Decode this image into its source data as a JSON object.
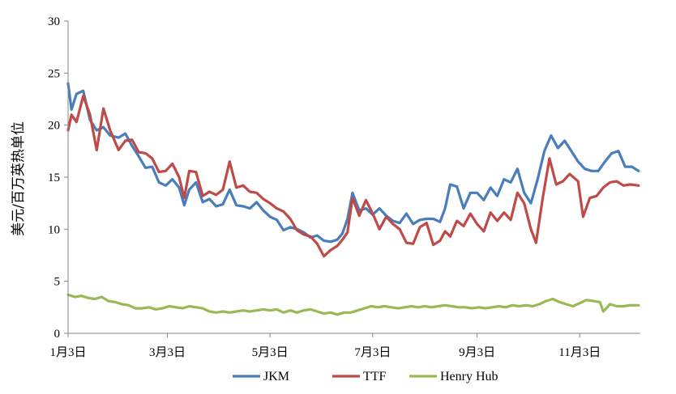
{
  "chart_data": {
    "type": "line",
    "title": "",
    "xlabel": "",
    "ylabel": "美元/百万英热单位",
    "ylim": [
      0,
      30
    ],
    "y_ticks": [
      0,
      5,
      10,
      15,
      20,
      25,
      30
    ],
    "x_ticks": [
      {
        "label": "1月3日",
        "date": "2022-01-03"
      },
      {
        "label": "3月3日",
        "date": "2022-03-03"
      },
      {
        "label": "5月3日",
        "date": "2022-05-03"
      },
      {
        "label": "7月3日",
        "date": "2022-07-03"
      },
      {
        "label": "9月3日",
        "date": "2022-09-03"
      },
      {
        "label": "11月3日",
        "date": "2022-11-03"
      }
    ],
    "x_range": [
      "2022-01-03",
      "2022-12-09"
    ],
    "grid": false,
    "legend": "bottom",
    "series": [
      {
        "name": "JKM",
        "color": "#4a7ebb",
        "points": [
          [
            "2022-01-03",
            24.0
          ],
          [
            "2022-01-05",
            21.5
          ],
          [
            "2022-01-08",
            23.0
          ],
          [
            "2022-01-12",
            23.3
          ],
          [
            "2022-01-16",
            20.5
          ],
          [
            "2022-01-20",
            19.5
          ],
          [
            "2022-01-24",
            19.8
          ],
          [
            "2022-01-28",
            19.0
          ],
          [
            "2022-02-02",
            18.8
          ],
          [
            "2022-02-06",
            19.2
          ],
          [
            "2022-02-10",
            18.0
          ],
          [
            "2022-02-14",
            17.0
          ],
          [
            "2022-02-18",
            15.9
          ],
          [
            "2022-02-22",
            16.0
          ],
          [
            "2022-02-26",
            14.5
          ],
          [
            "2022-03-02",
            14.2
          ],
          [
            "2022-03-06",
            14.8
          ],
          [
            "2022-03-10",
            14.0
          ],
          [
            "2022-03-13",
            12.3
          ],
          [
            "2022-03-16",
            13.8
          ],
          [
            "2022-03-20",
            14.5
          ],
          [
            "2022-03-24",
            12.6
          ],
          [
            "2022-03-28",
            12.9
          ],
          [
            "2022-04-01",
            12.2
          ],
          [
            "2022-04-05",
            12.4
          ],
          [
            "2022-04-09",
            13.8
          ],
          [
            "2022-04-13",
            12.3
          ],
          [
            "2022-04-17",
            12.2
          ],
          [
            "2022-04-21",
            12.0
          ],
          [
            "2022-04-25",
            12.6
          ],
          [
            "2022-04-29",
            11.8
          ],
          [
            "2022-05-03",
            11.2
          ],
          [
            "2022-05-07",
            10.9
          ],
          [
            "2022-05-11",
            9.9
          ],
          [
            "2022-05-15",
            10.2
          ],
          [
            "2022-05-19",
            10.0
          ],
          [
            "2022-05-23",
            9.7
          ],
          [
            "2022-05-27",
            9.2
          ],
          [
            "2022-05-31",
            9.4
          ],
          [
            "2022-06-04",
            8.9
          ],
          [
            "2022-06-08",
            8.8
          ],
          [
            "2022-06-12",
            9.0
          ],
          [
            "2022-06-15",
            9.6
          ],
          [
            "2022-06-18",
            11.0
          ],
          [
            "2022-06-21",
            13.5
          ],
          [
            "2022-06-25",
            11.8
          ],
          [
            "2022-06-29",
            12.0
          ],
          [
            "2022-07-03",
            11.4
          ],
          [
            "2022-07-07",
            12.0
          ],
          [
            "2022-07-11",
            11.3
          ],
          [
            "2022-07-15",
            10.8
          ],
          [
            "2022-07-19",
            10.6
          ],
          [
            "2022-07-23",
            11.5
          ],
          [
            "2022-07-27",
            10.5
          ],
          [
            "2022-07-31",
            10.9
          ],
          [
            "2022-08-04",
            11.0
          ],
          [
            "2022-08-08",
            11.0
          ],
          [
            "2022-08-12",
            10.7
          ],
          [
            "2022-08-15",
            12.0
          ],
          [
            "2022-08-18",
            14.3
          ],
          [
            "2022-08-22",
            14.1
          ],
          [
            "2022-08-26",
            12.0
          ],
          [
            "2022-08-30",
            13.5
          ],
          [
            "2022-09-03",
            13.5
          ],
          [
            "2022-09-07",
            12.8
          ],
          [
            "2022-09-11",
            14.0
          ],
          [
            "2022-09-15",
            13.2
          ],
          [
            "2022-09-19",
            14.8
          ],
          [
            "2022-09-23",
            14.5
          ],
          [
            "2022-09-27",
            15.8
          ],
          [
            "2022-10-01",
            13.5
          ],
          [
            "2022-10-05",
            12.5
          ],
          [
            "2022-10-09",
            14.8
          ],
          [
            "2022-10-13",
            17.5
          ],
          [
            "2022-10-17",
            19.0
          ],
          [
            "2022-10-21",
            17.8
          ],
          [
            "2022-10-25",
            18.5
          ],
          [
            "2022-10-29",
            17.5
          ],
          [
            "2022-11-02",
            16.5
          ],
          [
            "2022-11-06",
            15.8
          ],
          [
            "2022-11-10",
            15.6
          ],
          [
            "2022-11-14",
            15.6
          ],
          [
            "2022-11-18",
            16.5
          ],
          [
            "2022-11-22",
            17.3
          ],
          [
            "2022-11-26",
            17.5
          ],
          [
            "2022-11-30",
            16.0
          ],
          [
            "2022-12-04",
            16.0
          ],
          [
            "2022-12-08",
            15.6
          ]
        ]
      },
      {
        "name": "TTF",
        "color": "#be4b48",
        "points": [
          [
            "2022-01-03",
            19.5
          ],
          [
            "2022-01-05",
            21.0
          ],
          [
            "2022-01-08",
            20.3
          ],
          [
            "2022-01-12",
            22.8
          ],
          [
            "2022-01-16",
            21.0
          ],
          [
            "2022-01-20",
            17.6
          ],
          [
            "2022-01-24",
            21.6
          ],
          [
            "2022-01-28",
            19.5
          ],
          [
            "2022-02-02",
            17.6
          ],
          [
            "2022-02-06",
            18.5
          ],
          [
            "2022-02-10",
            18.6
          ],
          [
            "2022-02-14",
            17.4
          ],
          [
            "2022-02-18",
            17.3
          ],
          [
            "2022-02-22",
            16.8
          ],
          [
            "2022-02-26",
            15.5
          ],
          [
            "2022-03-02",
            15.6
          ],
          [
            "2022-03-06",
            16.3
          ],
          [
            "2022-03-10",
            15.0
          ],
          [
            "2022-03-13",
            13.0
          ],
          [
            "2022-03-16",
            15.6
          ],
          [
            "2022-03-20",
            15.5
          ],
          [
            "2022-03-24",
            13.2
          ],
          [
            "2022-03-28",
            13.6
          ],
          [
            "2022-04-01",
            13.3
          ],
          [
            "2022-04-05",
            13.8
          ],
          [
            "2022-04-09",
            16.5
          ],
          [
            "2022-04-13",
            14.0
          ],
          [
            "2022-04-17",
            14.2
          ],
          [
            "2022-04-21",
            13.6
          ],
          [
            "2022-04-25",
            13.5
          ],
          [
            "2022-04-29",
            12.9
          ],
          [
            "2022-05-03",
            12.5
          ],
          [
            "2022-05-07",
            12.0
          ],
          [
            "2022-05-11",
            11.7
          ],
          [
            "2022-05-15",
            11.0
          ],
          [
            "2022-05-19",
            9.9
          ],
          [
            "2022-05-23",
            9.5
          ],
          [
            "2022-05-27",
            9.3
          ],
          [
            "2022-05-31",
            8.6
          ],
          [
            "2022-06-04",
            7.4
          ],
          [
            "2022-06-08",
            8.0
          ],
          [
            "2022-06-12",
            8.4
          ],
          [
            "2022-06-15",
            9.0
          ],
          [
            "2022-06-18",
            9.7
          ],
          [
            "2022-06-21",
            13.0
          ],
          [
            "2022-06-25",
            11.3
          ],
          [
            "2022-06-29",
            12.8
          ],
          [
            "2022-07-03",
            11.5
          ],
          [
            "2022-07-07",
            10.0
          ],
          [
            "2022-07-11",
            11.2
          ],
          [
            "2022-07-15",
            10.5
          ],
          [
            "2022-07-19",
            10.0
          ],
          [
            "2022-07-23",
            8.7
          ],
          [
            "2022-07-27",
            8.6
          ],
          [
            "2022-07-31",
            10.2
          ],
          [
            "2022-08-04",
            10.6
          ],
          [
            "2022-08-08",
            8.5
          ],
          [
            "2022-08-12",
            8.9
          ],
          [
            "2022-08-15",
            9.8
          ],
          [
            "2022-08-18",
            9.3
          ],
          [
            "2022-08-22",
            10.8
          ],
          [
            "2022-08-26",
            10.3
          ],
          [
            "2022-08-30",
            11.5
          ],
          [
            "2022-09-03",
            10.5
          ],
          [
            "2022-09-07",
            9.8
          ],
          [
            "2022-09-11",
            11.6
          ],
          [
            "2022-09-15",
            10.8
          ],
          [
            "2022-09-19",
            11.6
          ],
          [
            "2022-09-23",
            10.9
          ],
          [
            "2022-09-27",
            13.5
          ],
          [
            "2022-10-01",
            12.5
          ],
          [
            "2022-10-05",
            10.0
          ],
          [
            "2022-10-08",
            8.7
          ],
          [
            "2022-10-12",
            13.0
          ],
          [
            "2022-10-16",
            16.8
          ],
          [
            "2022-10-20",
            14.3
          ],
          [
            "2022-10-24",
            14.6
          ],
          [
            "2022-10-28",
            15.3
          ],
          [
            "2022-11-02",
            14.6
          ],
          [
            "2022-11-05",
            11.2
          ],
          [
            "2022-11-09",
            13.0
          ],
          [
            "2022-11-13",
            13.2
          ],
          [
            "2022-11-17",
            14.0
          ],
          [
            "2022-11-21",
            14.5
          ],
          [
            "2022-11-25",
            14.6
          ],
          [
            "2022-11-29",
            14.2
          ],
          [
            "2022-12-03",
            14.3
          ],
          [
            "2022-12-08",
            14.2
          ]
        ]
      },
      {
        "name": "Henry Hub",
        "color": "#98b954",
        "points": [
          [
            "2022-01-03",
            3.7
          ],
          [
            "2022-01-07",
            3.5
          ],
          [
            "2022-01-11",
            3.6
          ],
          [
            "2022-01-15",
            3.4
          ],
          [
            "2022-01-19",
            3.3
          ],
          [
            "2022-01-23",
            3.5
          ],
          [
            "2022-01-27",
            3.1
          ],
          [
            "2022-01-31",
            3.0
          ],
          [
            "2022-02-04",
            2.8
          ],
          [
            "2022-02-08",
            2.7
          ],
          [
            "2022-02-12",
            2.4
          ],
          [
            "2022-02-16",
            2.4
          ],
          [
            "2022-02-20",
            2.5
          ],
          [
            "2022-02-24",
            2.3
          ],
          [
            "2022-02-28",
            2.4
          ],
          [
            "2022-03-04",
            2.6
          ],
          [
            "2022-03-08",
            2.5
          ],
          [
            "2022-03-12",
            2.4
          ],
          [
            "2022-03-16",
            2.6
          ],
          [
            "2022-03-20",
            2.5
          ],
          [
            "2022-03-24",
            2.4
          ],
          [
            "2022-03-28",
            2.1
          ],
          [
            "2022-04-01",
            2.0
          ],
          [
            "2022-04-05",
            2.1
          ],
          [
            "2022-04-09",
            2.0
          ],
          [
            "2022-04-13",
            2.1
          ],
          [
            "2022-04-17",
            2.2
          ],
          [
            "2022-04-21",
            2.1
          ],
          [
            "2022-04-25",
            2.2
          ],
          [
            "2022-04-29",
            2.3
          ],
          [
            "2022-05-03",
            2.2
          ],
          [
            "2022-05-07",
            2.3
          ],
          [
            "2022-05-11",
            2.0
          ],
          [
            "2022-05-15",
            2.2
          ],
          [
            "2022-05-19",
            2.0
          ],
          [
            "2022-05-23",
            2.2
          ],
          [
            "2022-05-27",
            2.3
          ],
          [
            "2022-05-31",
            2.1
          ],
          [
            "2022-06-04",
            1.9
          ],
          [
            "2022-06-08",
            2.0
          ],
          [
            "2022-06-12",
            1.8
          ],
          [
            "2022-06-16",
            2.0
          ],
          [
            "2022-06-20",
            2.0
          ],
          [
            "2022-06-24",
            2.2
          ],
          [
            "2022-06-28",
            2.4
          ],
          [
            "2022-07-02",
            2.6
          ],
          [
            "2022-07-06",
            2.5
          ],
          [
            "2022-07-10",
            2.6
          ],
          [
            "2022-07-14",
            2.5
          ],
          [
            "2022-07-18",
            2.4
          ],
          [
            "2022-07-22",
            2.5
          ],
          [
            "2022-07-26",
            2.6
          ],
          [
            "2022-07-30",
            2.5
          ],
          [
            "2022-08-03",
            2.6
          ],
          [
            "2022-08-07",
            2.5
          ],
          [
            "2022-08-11",
            2.6
          ],
          [
            "2022-08-15",
            2.7
          ],
          [
            "2022-08-19",
            2.6
          ],
          [
            "2022-08-23",
            2.5
          ],
          [
            "2022-08-27",
            2.5
          ],
          [
            "2022-08-31",
            2.4
          ],
          [
            "2022-09-04",
            2.5
          ],
          [
            "2022-09-08",
            2.4
          ],
          [
            "2022-09-12",
            2.5
          ],
          [
            "2022-09-16",
            2.6
          ],
          [
            "2022-09-20",
            2.5
          ],
          [
            "2022-09-24",
            2.7
          ],
          [
            "2022-09-28",
            2.6
          ],
          [
            "2022-10-02",
            2.7
          ],
          [
            "2022-10-06",
            2.6
          ],
          [
            "2022-10-10",
            2.8
          ],
          [
            "2022-10-14",
            3.1
          ],
          [
            "2022-10-18",
            3.3
          ],
          [
            "2022-10-22",
            3.0
          ],
          [
            "2022-10-26",
            2.8
          ],
          [
            "2022-10-30",
            2.6
          ],
          [
            "2022-11-03",
            2.9
          ],
          [
            "2022-11-07",
            3.2
          ],
          [
            "2022-11-11",
            3.1
          ],
          [
            "2022-11-15",
            3.0
          ],
          [
            "2022-11-17",
            2.1
          ],
          [
            "2022-11-21",
            2.8
          ],
          [
            "2022-11-25",
            2.6
          ],
          [
            "2022-11-29",
            2.6
          ],
          [
            "2022-12-03",
            2.7
          ],
          [
            "2022-12-08",
            2.7
          ]
        ]
      }
    ]
  }
}
